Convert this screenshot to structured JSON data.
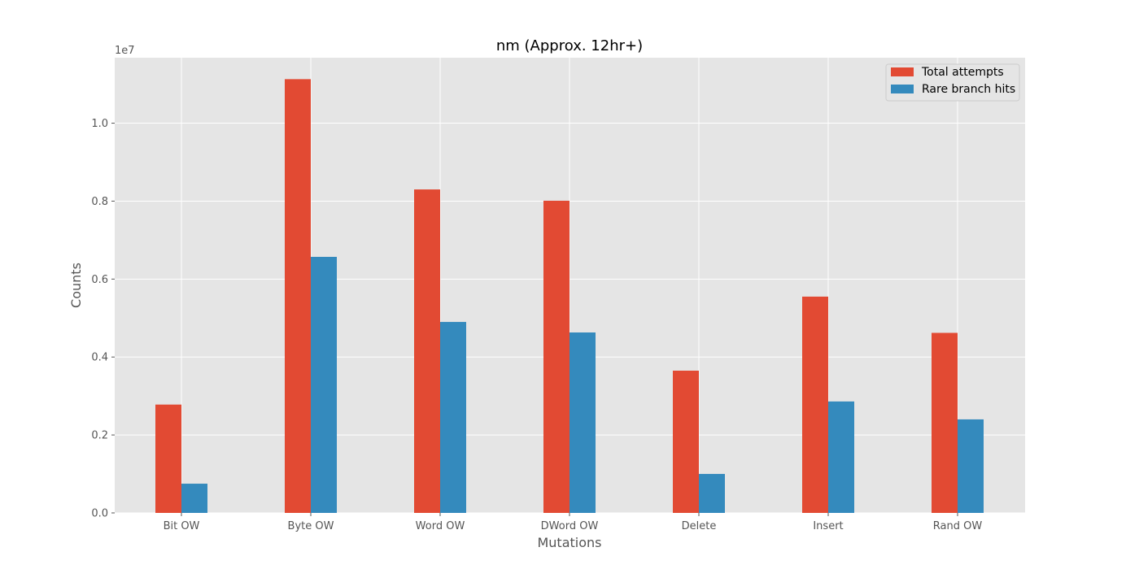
{
  "chart_data": {
    "type": "bar",
    "title": "nm (Approx. 12hr+)",
    "xlabel": "Mutations",
    "ylabel": "Counts",
    "y_scale_label": "1e7",
    "categories": [
      "Bit OW",
      "Byte OW",
      "Word OW",
      "DWord OW",
      "Delete",
      "Insert",
      "Rand OW"
    ],
    "series": [
      {
        "name": "Total attempts",
        "color": "#E24A33",
        "values": [
          2780000,
          11130000,
          8300000,
          8010000,
          3650000,
          5550000,
          4620000
        ]
      },
      {
        "name": "Rare branch hits",
        "color": "#348ABD",
        "values": [
          750000,
          6570000,
          4900000,
          4630000,
          1000000,
          2860000,
          2400000
        ]
      }
    ],
    "yticks": [
      0,
      2000000,
      4000000,
      6000000,
      8000000,
      10000000
    ],
    "ytick_labels": [
      "0.0",
      "0.2",
      "0.4",
      "0.6",
      "0.8",
      "1.0"
    ],
    "ylim": [
      0,
      11680000
    ],
    "grid": true,
    "legend_position": "top-right",
    "background_color": "#E5E5E5"
  }
}
